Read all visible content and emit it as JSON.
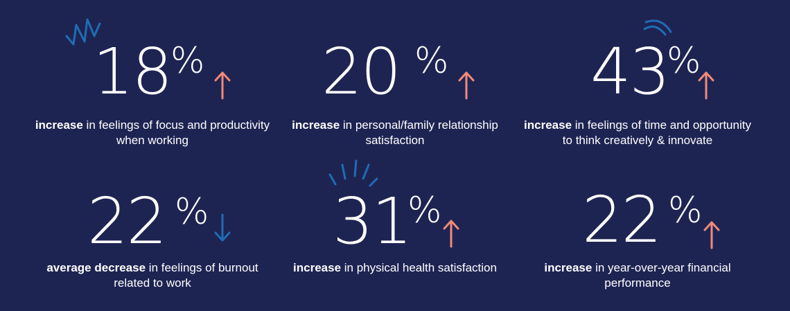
{
  "stats": [
    {
      "value": "18",
      "unit": "%",
      "direction": "up",
      "bold": "increase",
      "rest": " in feelings of focus and productivity when working"
    },
    {
      "value": "20",
      "unit": "%",
      "direction": "up",
      "bold": "increase",
      "rest": " in personal/family relationship satisfaction"
    },
    {
      "value": "43",
      "unit": "%",
      "direction": "up",
      "bold": "increase",
      "rest": " in feelings of time and opportunity to think creatively & innovate"
    },
    {
      "value": "22",
      "unit": "%",
      "direction": "down",
      "bold": "average decrease",
      "rest": " in feelings of burnout related to work"
    },
    {
      "value": "31",
      "unit": "%",
      "direction": "up",
      "bold": "increase",
      "rest": " in physical health satisfaction"
    },
    {
      "value": "22",
      "unit": "%",
      "direction": "up",
      "bold": "increase",
      "rest": " in year-over-year financial performance"
    }
  ],
  "colors": {
    "background": "#1e2452",
    "up_arrow": "#f08a7b",
    "down_arrow": "#1f6db4",
    "accent": "#1f6db4",
    "text": "#ffffff"
  }
}
